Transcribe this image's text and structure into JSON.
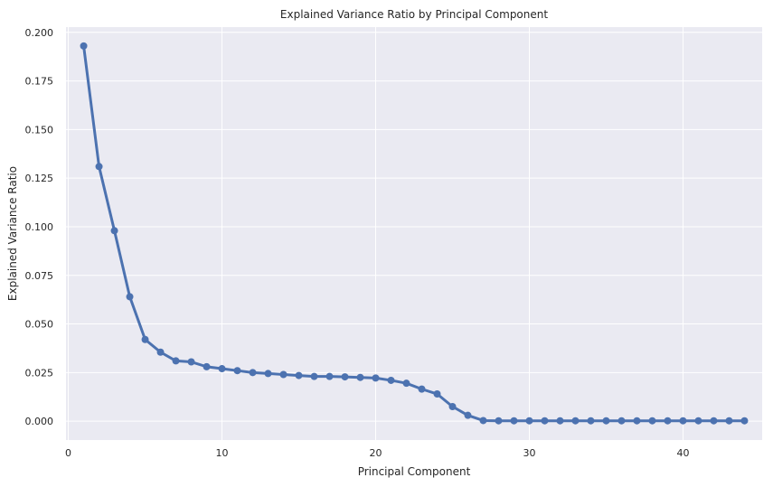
{
  "chart_data": {
    "type": "line",
    "title": "Explained Variance Ratio by Principal Component",
    "xlabel": "Principal Component",
    "ylabel": "Explained Variance Ratio",
    "xlim": [
      -0.15,
      45.15
    ],
    "ylim": [
      -0.0097,
      0.2027
    ],
    "xticks": [
      0,
      10,
      20,
      30,
      40
    ],
    "xtick_labels": [
      "0",
      "10",
      "20",
      "30",
      "40"
    ],
    "yticks": [
      0.0,
      0.025,
      0.05,
      0.075,
      0.1,
      0.125,
      0.15,
      0.175,
      0.2
    ],
    "ytick_labels": [
      "0.000",
      "0.025",
      "0.050",
      "0.075",
      "0.100",
      "0.125",
      "0.150",
      "0.175",
      "0.200"
    ],
    "grid": true,
    "colors": {
      "background": "#eaeaf2",
      "grid": "#ffffff",
      "line": "#4c72b0"
    },
    "series": [
      {
        "x": [
          1,
          2,
          3,
          4,
          5,
          6,
          7,
          8,
          9,
          10,
          11,
          12,
          13,
          14,
          15,
          16,
          17,
          18,
          19,
          20,
          21,
          22,
          23,
          24,
          25,
          26,
          27,
          28,
          29,
          30,
          31,
          32,
          33,
          34,
          35,
          36,
          37,
          38,
          39,
          40,
          41,
          42,
          43,
          44
        ],
        "values": [
          0.193,
          0.131,
          0.098,
          0.064,
          0.042,
          0.0355,
          0.031,
          0.0305,
          0.028,
          0.027,
          0.026,
          0.025,
          0.0245,
          0.024,
          0.0235,
          0.023,
          0.023,
          0.0228,
          0.0225,
          0.0222,
          0.021,
          0.0195,
          0.0165,
          0.014,
          0.0075,
          0.003,
          0.0003,
          0.0002,
          0.0002,
          0.0002,
          0.0002,
          0.0002,
          0.0002,
          0.0002,
          0.0002,
          0.0002,
          0.0002,
          0.0002,
          0.0002,
          0.0002,
          0.0002,
          0.0002,
          0.0002,
          0.0002
        ]
      }
    ]
  }
}
